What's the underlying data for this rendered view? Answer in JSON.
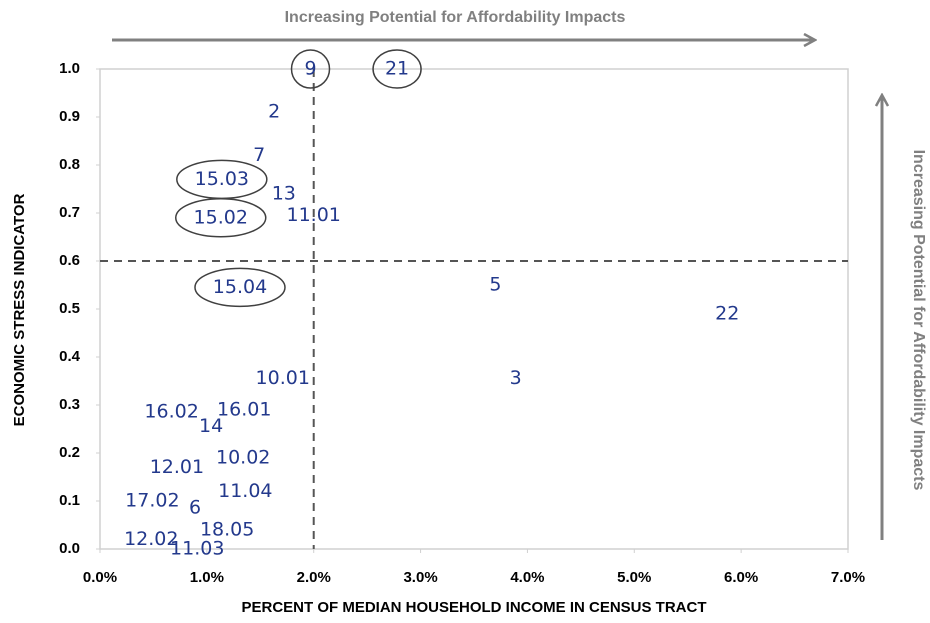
{
  "chart_data": {
    "type": "scatter",
    "annotations": [
      "Increasing Potential for Affordability Impacts",
      "Increasing Potential for Affordability Impacts"
    ],
    "xlabel": "PERCENT OF MEDIAN HOUSEHOLD INCOME IN CENSUS TRACT",
    "ylabel": "ECONOMIC STRESS INDICATOR",
    "labels": [
      "9",
      "21",
      "2",
      "7",
      "15.03",
      "13",
      "15.02",
      "11.01",
      "15.04",
      "5",
      "22",
      "10.01",
      "3",
      "16.02",
      "16.01",
      "14",
      "12.01",
      "10.02",
      "17.02",
      "6",
      "11.04",
      "18.05",
      "12.02",
      "11.03"
    ],
    "x": [
      1.97,
      2.78,
      1.63,
      1.49,
      1.14,
      1.72,
      1.13,
      2.0,
      1.31,
      3.7,
      5.87,
      1.71,
      3.89,
      0.67,
      1.35,
      1.04,
      0.72,
      1.34,
      0.49,
      0.89,
      1.36,
      1.19,
      0.48,
      0.91
    ],
    "values": [
      1.0,
      1.0,
      0.91,
      0.82,
      0.77,
      0.74,
      0.69,
      0.695,
      0.545,
      0.55,
      0.49,
      0.355,
      0.355,
      0.285,
      0.29,
      0.255,
      0.17,
      0.19,
      0.1,
      0.085,
      0.12,
      0.04,
      0.02,
      0.0
    ],
    "highlight": [
      true,
      true,
      false,
      false,
      true,
      false,
      true,
      false,
      true,
      false,
      false,
      false,
      false,
      false,
      false,
      false,
      false,
      false,
      false,
      false,
      false,
      false,
      false,
      false
    ],
    "color": "#23398c",
    "reference_lines": {
      "x": 2.0,
      "y": 0.6
    },
    "xlim": [
      0,
      7
    ],
    "ylim": [
      0,
      1
    ],
    "xticks": [
      {
        "value": 0,
        "label": "0.0%"
      },
      {
        "value": 1,
        "label": "1.0%"
      },
      {
        "value": 2,
        "label": "2.0%"
      },
      {
        "value": 3,
        "label": "3.0%"
      },
      {
        "value": 4,
        "label": "4.0%"
      },
      {
        "value": 5,
        "label": "5.0%"
      },
      {
        "value": 6,
        "label": "6.0%"
      },
      {
        "value": 7,
        "label": "7.0%"
      }
    ],
    "yticks": [
      {
        "value": 0,
        "label": "0.0"
      },
      0.1,
      0.2,
      0.3,
      0.4,
      0.5,
      0.6,
      0.7,
      0.8,
      0.9,
      {
        "value": 1,
        "label": "1.0"
      }
    ]
  }
}
